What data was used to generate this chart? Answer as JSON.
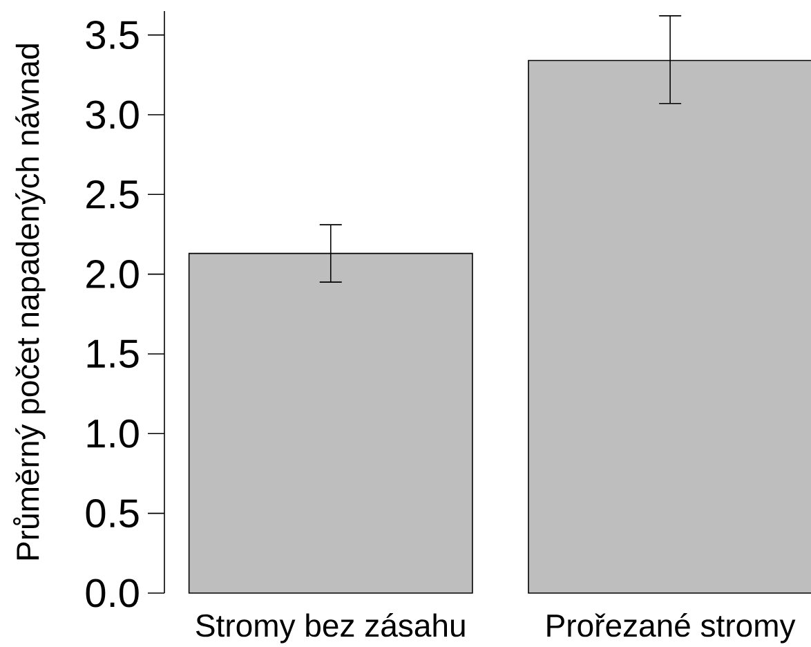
{
  "chart_data": {
    "type": "bar",
    "ylabel": "Průměrný počet napadených návnad",
    "categories": [
      "Stromy bez zásahu",
      "Prořezané stromy"
    ],
    "values": [
      2.13,
      3.34
    ],
    "errors": [
      [
        1.95,
        2.31
      ],
      [
        3.07,
        3.62
      ]
    ],
    "color": "#bebebe",
    "ylim": [
      0,
      3.65
    ],
    "yticks": [
      {
        "value": 0,
        "label": "0.0"
      },
      {
        "value": 0.5,
        "label": "0.5"
      },
      {
        "value": 1,
        "label": "1.0"
      },
      {
        "value": 1.5,
        "label": "1.5"
      },
      {
        "value": 2,
        "label": "2.0"
      },
      {
        "value": 2.5,
        "label": "2.5"
      },
      {
        "value": 3,
        "label": "3.0"
      },
      {
        "value": 3.5,
        "label": "3.5"
      }
    ],
    "grid": false
  }
}
